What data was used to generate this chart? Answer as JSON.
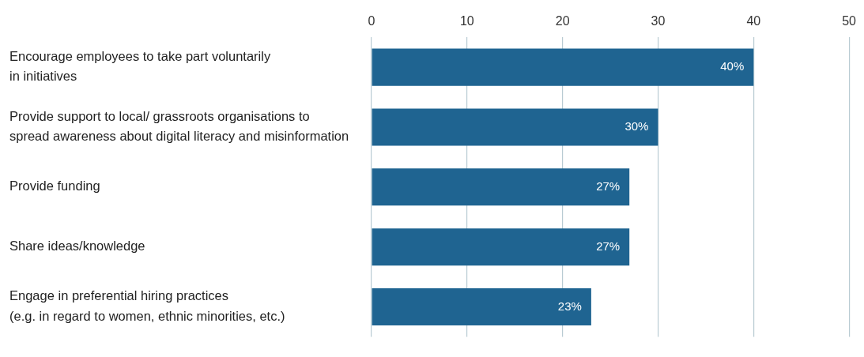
{
  "chart_data": {
    "type": "bar",
    "orientation": "horizontal",
    "categories": [
      "Encourage employees to take part voluntarily\nin initiatives",
      "Provide support to local/ grassroots organisations to\nspread awareness about digital literacy and misinformation",
      "Provide funding",
      "Share ideas/knowledge",
      "Engage in preferential hiring practices\n(e.g. in regard to women, ethnic minorities, etc.)"
    ],
    "values": [
      40,
      30,
      27,
      27,
      23
    ],
    "value_labels": [
      "40%",
      "30%",
      "27%",
      "27%",
      "23%"
    ],
    "color": "#1f6491",
    "xlim": [
      0,
      50
    ],
    "xticks": [
      0,
      10,
      20,
      30,
      40,
      50
    ],
    "grid": "x",
    "legend": false
  }
}
